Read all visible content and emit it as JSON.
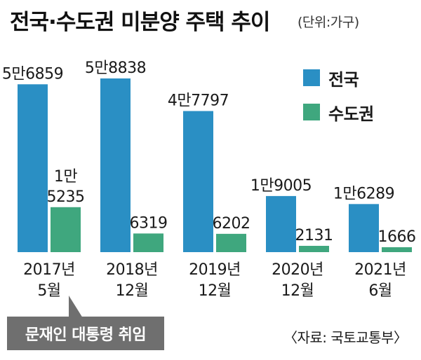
{
  "colors": {
    "nationwide": "#2a8fc4",
    "capital": "#3fa77e",
    "callout": "#6f6f6f"
  },
  "unit_label": "(단위:가구)",
  "chart_data": {
    "type": "bar",
    "title": "전국·수도권 미분양 주택 추이",
    "categories": [
      [
        "2017년",
        "5월"
      ],
      [
        "2018년",
        "12월"
      ],
      [
        "2019년",
        "12월"
      ],
      [
        "2020년",
        "12월"
      ],
      [
        "2021년",
        "6월"
      ]
    ],
    "series": [
      {
        "name": "전국",
        "color": "#2a8fc4",
        "values": [
          56859,
          58838,
          47797,
          19005,
          16289
        ],
        "labels": [
          "5만6859",
          "5만8838",
          "4만7797",
          "1만9005",
          "1만6289"
        ]
      },
      {
        "name": "수도권",
        "color": "#3fa77e",
        "values": [
          15235,
          6319,
          6202,
          2131,
          1666
        ],
        "labels": [
          [
            "1만",
            "5235"
          ],
          [
            "6319"
          ],
          [
            "6202"
          ],
          [
            "2131"
          ],
          [
            "1666"
          ]
        ]
      }
    ],
    "ylim": [
      0,
      58838
    ]
  },
  "annotation": "문재인 대통령 취임",
  "source": "〈자료: 국토교통부〉"
}
